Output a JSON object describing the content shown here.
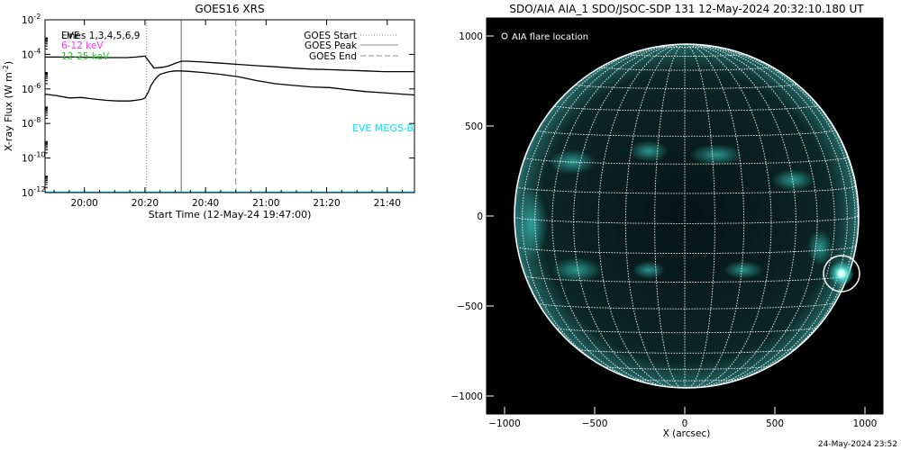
{
  "colors": {
    "background": "#ffffff",
    "goes_long": "#000000",
    "goes_short": "#000000",
    "eve_megs_a": "#ff33ff",
    "eve_megs_b": "#22cc22",
    "eve_megs_r": "#00e5ff",
    "aia_disk": "#0a2020",
    "aia_glow": "#39c9c0",
    "grid": "#ffffff"
  },
  "chart_data": [
    {
      "type": "line",
      "title": "GOES16 XRS",
      "xlabel": "Start Time (12-May-24 19:47:00)",
      "ylabel": "X-ray Flux (W m",
      "ylabel_sup": "-2",
      "ylabel_tail": ")",
      "y_scale": "log",
      "ylim": [
        1e-12,
        0.01
      ],
      "y_ticks": [
        {
          "value": 1e-12,
          "base": "10",
          "exp": "-12"
        },
        {
          "value": 1e-10,
          "base": "10",
          "exp": "-10"
        },
        {
          "value": 1e-08,
          "base": "10",
          "exp": "-8"
        },
        {
          "value": 1e-06,
          "base": "10",
          "exp": "-6"
        },
        {
          "value": 0.0001,
          "base": "10",
          "exp": "-4"
        },
        {
          "value": 0.01,
          "base": "10",
          "exp": "-2"
        }
      ],
      "x_units": "minutes after 19:47",
      "xlim": [
        0,
        122
      ],
      "x_ticks": [
        {
          "min": 13,
          "label": "20:00"
        },
        {
          "min": 33,
          "label": "20:20"
        },
        {
          "min": 53,
          "label": "20:40"
        },
        {
          "min": 73,
          "label": "21:00"
        },
        {
          "min": 93,
          "label": "21:20"
        },
        {
          "min": 113,
          "label": "21:40"
        }
      ],
      "legend_left": [
        {
          "text": "Lines 1,3,4,5,6,9",
          "overlay": "EVE",
          "color_key": "goes_long"
        },
        {
          "text": "6-12 keV",
          "color_key": "eve_megs_a"
        },
        {
          "text": "12-25 keV",
          "color_key": "eve_megs_b"
        }
      ],
      "legend_right": [
        {
          "text": "GOES Start",
          "style": "dotted"
        },
        {
          "text": "GOES Peak",
          "style": "solid"
        },
        {
          "text": "GOES End",
          "style": "dashed"
        }
      ],
      "vlines": [
        {
          "x": 33.5,
          "style": "dotted"
        },
        {
          "x": 45,
          "style": "solid"
        },
        {
          "x": 63,
          "style": "dashed"
        }
      ],
      "annotation": "EVE MEGS-B",
      "series": [
        {
          "color_key": "goes_long",
          "x": [
            0,
            10,
            20,
            27,
            30,
            33,
            36,
            39,
            41,
            43,
            45,
            47,
            52,
            58,
            64,
            70,
            76,
            82,
            88,
            94,
            100,
            106,
            112,
            118,
            122
          ],
          "y": [
            7e-05,
            7e-05,
            6.5e-05,
            6.5e-05,
            7e-05,
            8e-05,
            1.6e-05,
            1.8e-05,
            2.2e-05,
            3e-05,
            4e-05,
            4e-05,
            3.6e-05,
            3.1e-05,
            2.6e-05,
            2.2e-05,
            1.9e-05,
            1.6e-05,
            1.4e-05,
            1.3e-05,
            1.2e-05,
            1.1e-05,
            1e-05,
            1e-05,
            1e-05
          ]
        },
        {
          "color_key": "goes_short",
          "x": [
            0,
            4,
            8,
            12,
            16,
            20,
            24,
            28,
            30,
            32,
            33,
            34,
            35,
            36,
            37,
            38,
            39,
            41,
            43,
            45,
            47,
            52,
            58,
            64,
            70,
            76,
            82,
            88,
            94,
            100,
            106,
            112,
            118,
            122
          ],
          "y": [
            5e-07,
            4e-07,
            3e-07,
            3.2e-07,
            2.6e-07,
            2.2e-07,
            2e-07,
            2e-07,
            2.2e-07,
            2.5e-07,
            3e-07,
            6e-07,
            1.6e-06,
            3e-06,
            5e-06,
            7e-06,
            8e-06,
            1e-05,
            1.1e-05,
            1.1e-05,
            1.05e-05,
            9e-06,
            7e-06,
            5e-06,
            3e-06,
            2e-06,
            1.6e-06,
            1.3e-06,
            1.2e-06,
            9e-07,
            7e-07,
            6e-07,
            5e-07,
            4.5e-07
          ]
        },
        {
          "color_key": "eve_megs_r",
          "x": [
            0,
            122
          ],
          "y": [
            1e-12,
            1e-12
          ]
        }
      ]
    },
    {
      "type": "heatmap",
      "title": "SDO/AIA AIA_1 SDO/JSOC-SDP 131 12-May-2024 20:32:10.180 UT",
      "xlabel": "X (arcsec)",
      "ylabel": "",
      "xlim": [
        -1100,
        1100
      ],
      "ylim": [
        -1100,
        1100
      ],
      "x_ticks": [
        -1000,
        -500,
        0,
        500,
        1000
      ],
      "y_ticks": [
        -1000,
        -500,
        0,
        500,
        1000
      ],
      "legend": "AIA flare location",
      "solar_radius_arcsec": 960,
      "grid_step_deg": 10,
      "flare_location": {
        "x": 870,
        "y": -320
      }
    }
  ],
  "footer_timestamp": "24-May-2024 23:52"
}
